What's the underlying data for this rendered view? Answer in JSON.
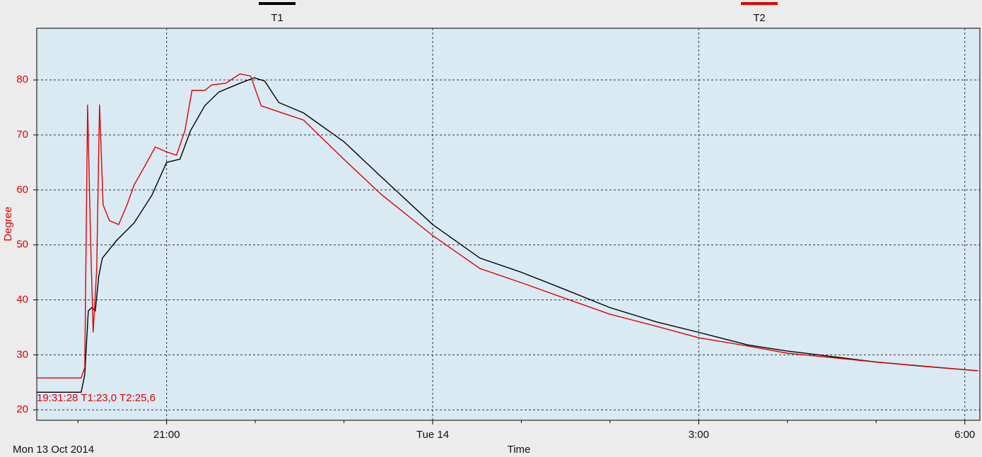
{
  "chart_data": {
    "type": "line",
    "y_label": "Degree",
    "x_label": "Time",
    "date_label": "Mon 13 Oct 2014",
    "annotation": "19:31:28 T1:23,0 T2:25,6",
    "xlim": [
      19.536,
      30.17
    ],
    "ylim": [
      18.1,
      89.4
    ],
    "xticks": [
      {
        "value": 21,
        "label": "21:00"
      },
      {
        "value": 24,
        "label": "Tue 14"
      },
      {
        "value": 27,
        "label": "3:00"
      },
      {
        "value": 30,
        "label": "6:00"
      }
    ],
    "xminorticks": [
      20,
      22,
      23,
      25,
      26,
      28,
      29
    ],
    "yticks": [
      20,
      30,
      40,
      50,
      60,
      70,
      80
    ],
    "grid": true,
    "legend": "top",
    "series": [
      {
        "name": "T1",
        "color": "#000000",
        "x": [
          19.536,
          20.037,
          20.077,
          20.117,
          20.157,
          20.196,
          20.236,
          20.276,
          20.435,
          20.634,
          20.833,
          21,
          21.151,
          21.271,
          21.43,
          21.589,
          21.828,
          21.987,
          22.106,
          22.265,
          22.544,
          22.997,
          23.419,
          24,
          24.533,
          25.003,
          25.488,
          25.997,
          26.522,
          27,
          27.557,
          27.995,
          28.997,
          29.467,
          30.151
        ],
        "values": [
          23.2,
          23.2,
          26.4,
          38,
          38.6,
          38,
          44.4,
          47.6,
          50.8,
          54,
          59,
          65,
          65.6,
          70.8,
          75.3,
          77.8,
          79.4,
          80.4,
          79.8,
          75.9,
          74,
          68.8,
          62.4,
          53.7,
          47.6,
          45,
          41.9,
          38.6,
          36,
          34.1,
          31.8,
          30.7,
          28.7,
          28,
          27.1
        ]
      },
      {
        "name": "T2",
        "color": "#e00000",
        "x": [
          19.536,
          20.037,
          20.077,
          20.109,
          20.141,
          20.172,
          20.212,
          20.244,
          20.284,
          20.355,
          20.459,
          20.554,
          20.634,
          20.753,
          20.873,
          21,
          21.111,
          21.207,
          21.286,
          21.43,
          21.509,
          21.668,
          21.828,
          21.947,
          22.066,
          22.305,
          22.544,
          22.997,
          23.419,
          24,
          24.533,
          25.003,
          25.488,
          25.997,
          26.522,
          27,
          27.557,
          27.995,
          28.997,
          30.151
        ],
        "values": [
          25.8,
          25.8,
          27.7,
          75.5,
          52,
          34.1,
          45.7,
          75.5,
          57.3,
          54.4,
          53.7,
          57.3,
          60.9,
          64.3,
          67.8,
          66.9,
          66.3,
          70.8,
          78.1,
          78.1,
          79.1,
          79.4,
          81.1,
          80.7,
          75.3,
          74,
          72.7,
          65.6,
          59.2,
          51.7,
          45.7,
          43.1,
          40.3,
          37.4,
          35.2,
          33.1,
          31.6,
          30.3,
          28.7,
          27.1
        ]
      }
    ]
  }
}
